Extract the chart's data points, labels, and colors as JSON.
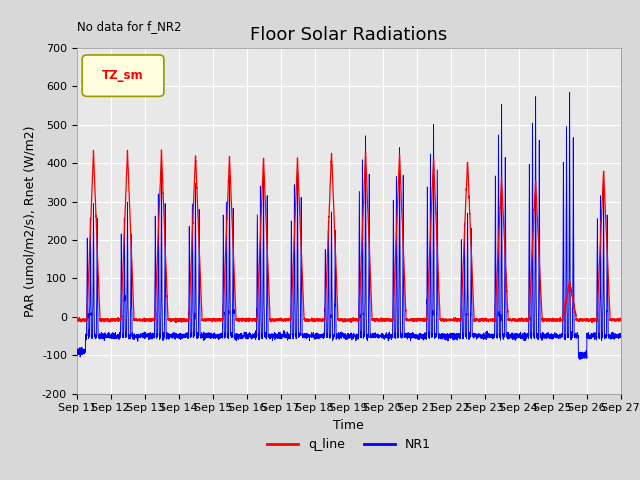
{
  "title": "Floor Solar Radiations",
  "xlabel": "Time",
  "ylabel": "PAR (umol/m2/s), Rnet (W/m2)",
  "annotation_text": "No data for f_NR2",
  "legend_label_text": "TZ_sm",
  "legend_line_label": "q_line",
  "legend_line2_label": "NR1",
  "ylim": [
    -200,
    700
  ],
  "fig_bg_color": "#d8d8d8",
  "plot_bg_color": "#e8e8e8",
  "line1_color": "red",
  "line2_color": "blue",
  "title_fontsize": 13,
  "axis_fontsize": 9,
  "tick_fontsize": 8,
  "n_days": 16,
  "start_day": 11,
  "q_peaks": [
    430,
    430,
    430,
    425,
    420,
    415,
    410,
    430,
    430,
    425,
    415,
    408,
    362,
    355,
    92,
    382
  ],
  "nr1_peaks": [
    315,
    310,
    395,
    367,
    378,
    408,
    413,
    285,
    500,
    468,
    515,
    298,
    570,
    602,
    612,
    382
  ],
  "night_q": -8,
  "night_nr1": -50,
  "grid_color": "#ffffff"
}
